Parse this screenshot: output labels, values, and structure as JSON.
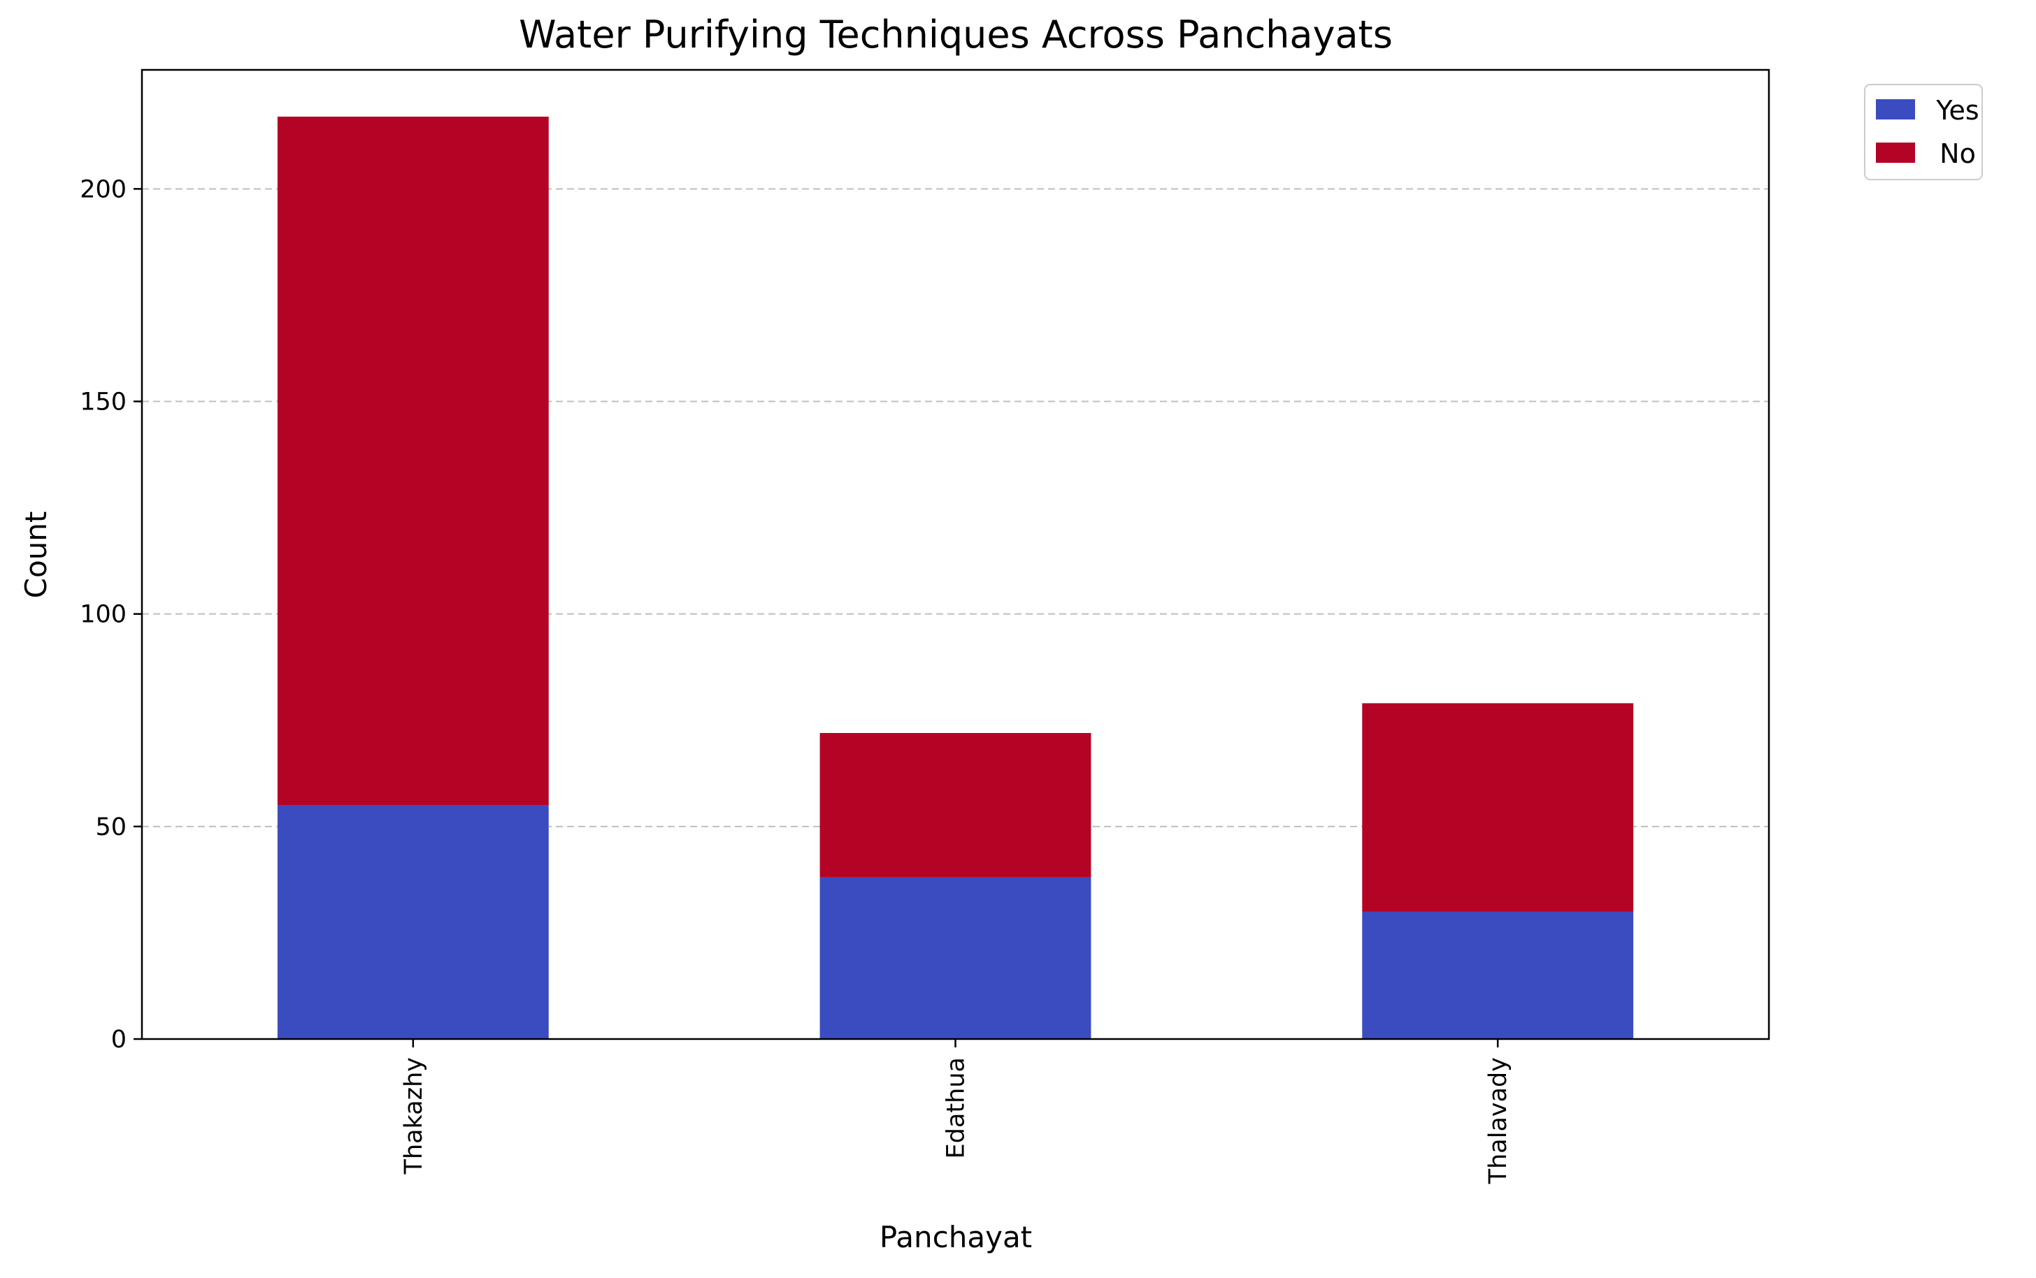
{
  "chart_data": {
    "type": "bar",
    "stacked": true,
    "title": "Water Purifying Techniques Across Panchayats",
    "xlabel": "Panchayat",
    "ylabel": "Count",
    "categories": [
      "Thakazhy",
      "Edathua",
      "Thalavady"
    ],
    "series": [
      {
        "name": "Yes",
        "values": [
          55,
          38,
          30
        ],
        "color": "#3b4cc0"
      },
      {
        "name": "No",
        "values": [
          162,
          34,
          49
        ],
        "color": "#b40426"
      }
    ],
    "ylim": [
      0,
      228
    ],
    "yticks": [
      0,
      50,
      100,
      150,
      200
    ],
    "grid": "y-dashed",
    "legend_position": "outside-top-right"
  }
}
